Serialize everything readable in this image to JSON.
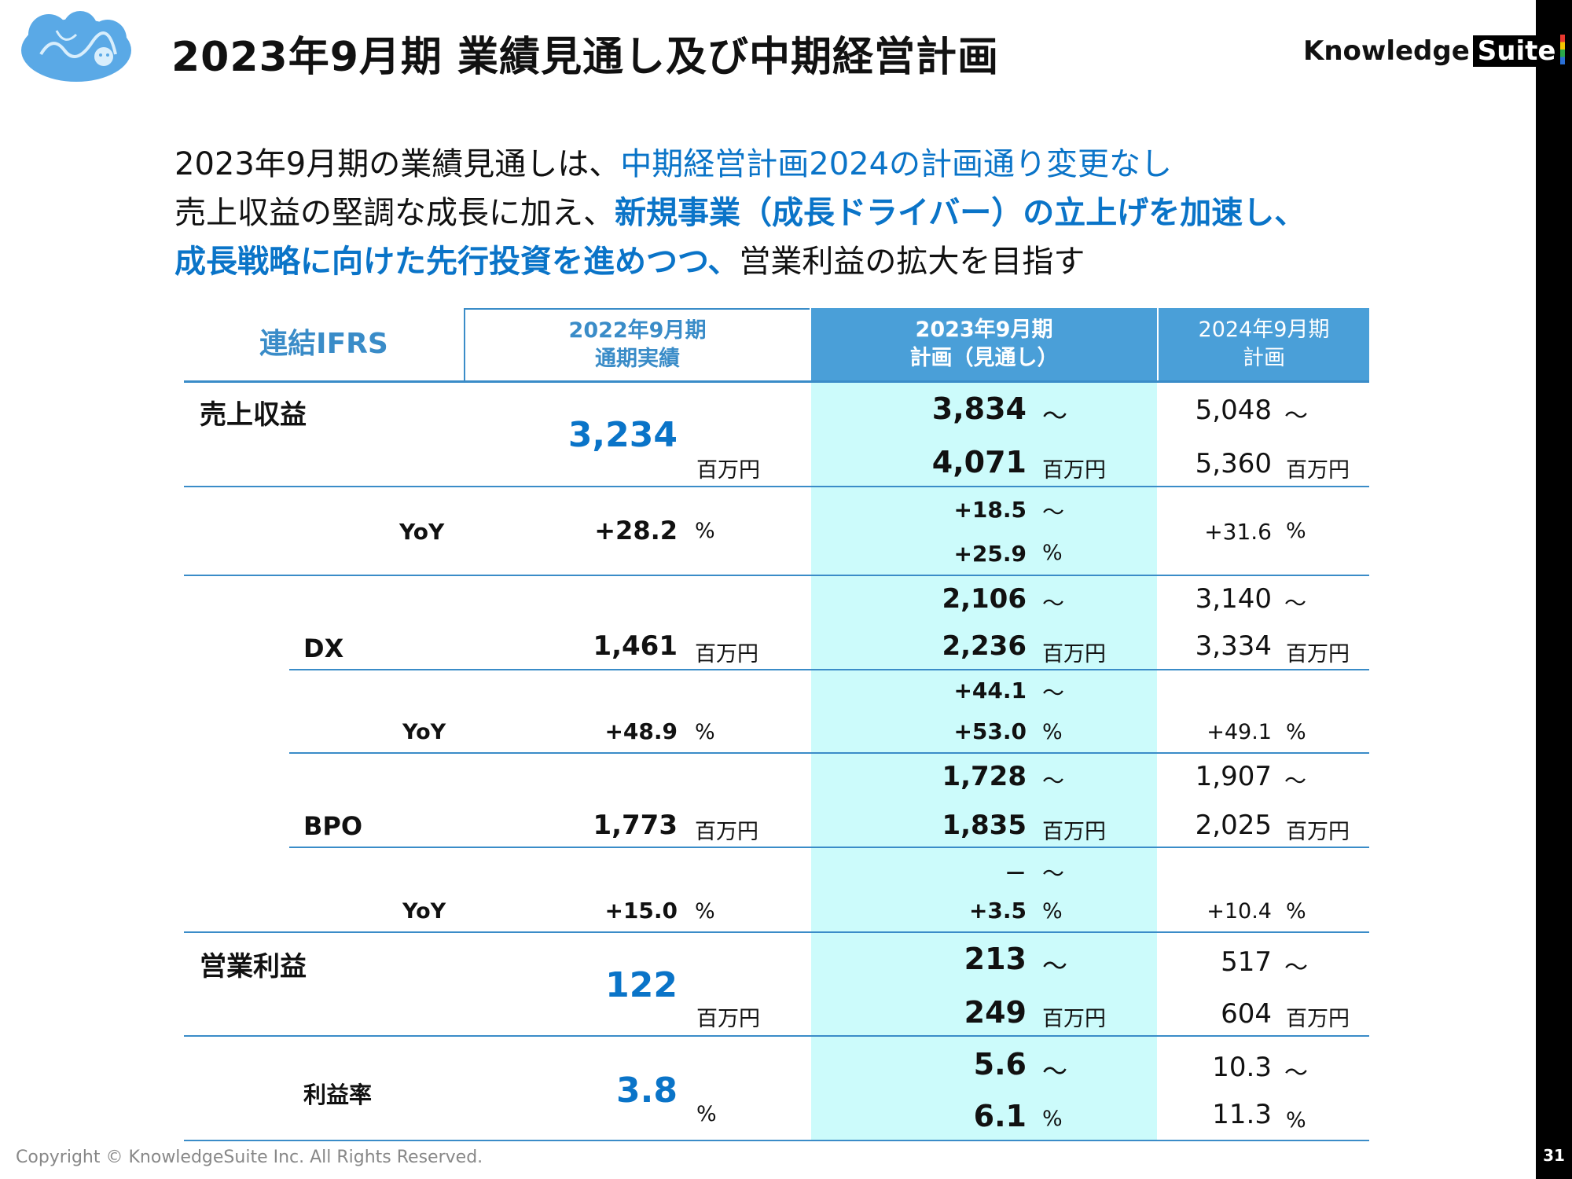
{
  "header": {
    "title": "2023年9月期 業績見通し及び中期経営計画",
    "brand_prefix": "Knowledge",
    "brand_suffix": "Suite",
    "logo_icon": "brain-cloud-icon"
  },
  "intro": {
    "line1_a": "2023年9月期の業績見通しは、",
    "line1_b": "中期経営計画2024の計画通り変更なし",
    "line2_a": "売上収益の堅調な成長に加え、",
    "line2_b": "新規事業（成長ドライバー）の立上げを加速し、",
    "line3_a": "成長戦略に向けた先行投資を進めつつ、",
    "line3_b": "営業利益の拡大を目指す"
  },
  "table": {
    "corner": "連結IFRS",
    "col1": {
      "line1": "2022年9月期",
      "line2": "通期実績"
    },
    "col2": {
      "line1": "2023年9月期",
      "line2": "計画（見通し）"
    },
    "col3": {
      "line1": "2024年9月期",
      "line2": "計画"
    },
    "units": {
      "million_yen": "百万円",
      "percent": "%",
      "tilde": "～"
    },
    "revenue": {
      "label": "売上収益",
      "actual": "3,234",
      "plan_low": "3,834",
      "plan_high": "4,071",
      "mid_low": "5,048",
      "mid_high": "5,360"
    },
    "revenue_yoy": {
      "label": "YoY",
      "actual": "+28.2",
      "plan_low": "+18.5",
      "plan_high": "+25.9",
      "mid": "+31.6"
    },
    "dx": {
      "label": "DX",
      "actual": "1,461",
      "plan_low": "2,106",
      "plan_high": "2,236",
      "mid_low": "3,140",
      "mid_high": "3,334"
    },
    "dx_yoy": {
      "label": "YoY",
      "actual": "+48.9",
      "plan_low": "+44.1",
      "plan_high": "+53.0",
      "mid": "+49.1"
    },
    "bpo": {
      "label": "BPO",
      "actual": "1,773",
      "plan_low": "1,728",
      "plan_high": "1,835",
      "mid_low": "1,907",
      "mid_high": "2,025"
    },
    "bpo_yoy": {
      "label": "YoY",
      "actual": "+15.0",
      "plan_low": "－",
      "plan_high": "+3.5",
      "mid": "+10.4"
    },
    "op_profit": {
      "label": "営業利益",
      "actual": "122",
      "plan_low": "213",
      "plan_high": "249",
      "mid_low": "517",
      "mid_high": "604"
    },
    "margin": {
      "label": "利益率",
      "actual": "3.8",
      "plan_low": "5.6",
      "plan_high": "6.1",
      "mid_low": "10.3",
      "mid_high": "11.3"
    }
  },
  "footer": {
    "copyright": "Copyright © KnowledgeSuite Inc. All Rights Reserved.",
    "page": "31"
  },
  "colors": {
    "accent_blue": "#0a74c8",
    "header_blue": "#4a9fd8",
    "plan_column_bg": "#ccfbfb",
    "line_blue": "#3a8cc8"
  }
}
